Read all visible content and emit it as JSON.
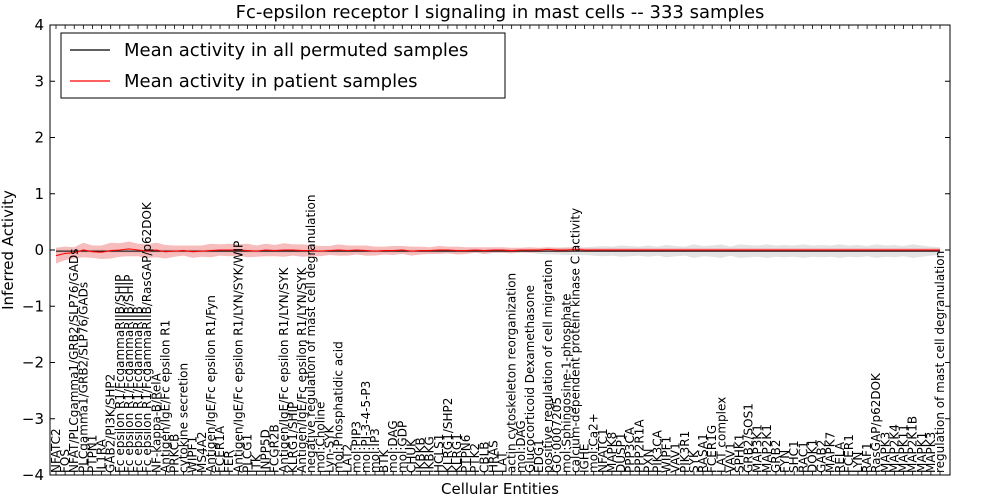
{
  "chart_data": {
    "type": "line",
    "title": "Fc-epsilon receptor I signaling in mast cells -- 333 samples",
    "xlabel": "Cellular Entities",
    "ylabel": "Inferred Activity",
    "ylim": [
      -4,
      4
    ],
    "yticks": [
      -4,
      -3,
      -2,
      -1,
      0,
      1,
      2,
      3,
      4
    ],
    "ytick_labels": [
      "−4",
      "−3",
      "−2",
      "−1",
      "0",
      "1",
      "2",
      "3",
      "4"
    ],
    "legend": {
      "placement": "top-left",
      "entries": [
        {
          "label": "Mean activity in all permuted samples",
          "color": "#000000"
        },
        {
          "label": "Mean activity in patient samples",
          "color": "#ff0000"
        }
      ]
    },
    "colors": {
      "permuted_line": "#000000",
      "patient_line": "#ff0000",
      "permuted_band": "#d9d9d9",
      "patient_band": "#f4a0a0"
    },
    "categories": [
      "NFATC2",
      "FOS",
      "NFAT/PLCgamma1/GRB2/SLP76/GADs",
      "PLCgamma1/GRB2/SLP76/GADs",
      "PTPN1",
      "IL1RA",
      "GAB2/PI3K/SHP2",
      "Fc epsilon R1/FcgammaRIIB/SHIP",
      "Fc epsilon R1/FcgammaRIIB/SHIP",
      "Fc epsilon R1/FcgammaRIIB",
      "Fc epsilon R1/FcgammaRIIB/RasGAP/p62DOK",
      "NF-kappa-B/RelA",
      "Antigen/IgE/Fc epsilon R1",
      "PRKCB",
      "cytokine secretion",
      "WIPF1",
      "MS4A2",
      "Antigen/IgE/Fc epsilon R1/Fyn",
      "FCER1A",
      "FER",
      "Antigen/IgE/Fc epsilon R1/LYN/SYK/WIP",
      "PLCG1",
      "ITK",
      "INPP5D",
      "FCGR2B",
      "Antigen/IgE/Fc epsilon R1/LYN/SYK",
      "KLRG1/SHIP",
      "Antigen/IgE/Fc epsilon R1/LYN/SYK",
      "negative regulation of mast cell degranulation",
      "mol:Choline",
      "Lyn-SYK",
      "mol:Phosphatidic acid",
      "LAT2",
      "mol:PIP3",
      "mol:PI-3-4-5-P3",
      "mol:IP3",
      "BTK",
      "mol:DAG",
      "mol:GDP",
      "CHUK",
      "IKBKB",
      "IKBKG",
      "HCLS1",
      "KLRG1/SHP2",
      "KLRG1",
      "PTPN6",
      "PTK2",
      "CBLB",
      "HRAS",
      "LAT",
      "actin cytoskeleton reorganization",
      "mol:DAG",
      "Glucocorticoid Dexamethasone",
      "EDG1",
      "positive regulation of cell migration",
      "GO:0007205",
      "mol:Sphingosine-1-phosphate",
      "calcium-dependent protein kinase C activity",
      "IGHE",
      "mol:Ca2+",
      "NFATC1",
      "MAPK8",
      "DUSP1",
      "PPP3CA",
      "PPP2R1A",
      "PXN",
      "PIK3CA",
      "WIPF1",
      "VAV1",
      "PIK3R1",
      "SYK",
      "RASA1",
      "FCER1G",
      "LAT complex",
      "VAV1",
      "SPHK1",
      "GRB2/SOS1",
      "MAP3K1",
      "MAP2K1",
      "GRB2",
      "FYN",
      "SHC1",
      "RAC1",
      "DOK1",
      "GAB2",
      "MAPK7",
      "RELA",
      "FCER1",
      "LYN",
      "RAF1",
      "RasGAP/p62DOK",
      "MAPK3",
      "MAP2K4",
      "MAPK11",
      "MAP2K1B",
      "MAPK1",
      "MAPK3",
      "regulation of mast cell degranulation"
    ],
    "series": [
      {
        "name": "Mean activity in all permuted samples",
        "values": [
          -0.02,
          -0.02,
          -0.02,
          -0.02,
          -0.02,
          -0.02,
          -0.02,
          -0.02,
          -0.02,
          -0.02,
          -0.02,
          -0.02,
          -0.02,
          -0.02,
          -0.02,
          -0.02,
          -0.02,
          -0.02,
          -0.02,
          -0.02,
          -0.02,
          -0.02,
          -0.02,
          -0.02,
          -0.02,
          -0.02,
          -0.02,
          -0.02,
          -0.02,
          -0.02,
          -0.02,
          -0.02,
          -0.02,
          -0.02,
          -0.02,
          -0.02,
          -0.02,
          -0.02,
          -0.02,
          -0.02,
          -0.02,
          -0.02,
          -0.02,
          -0.02,
          -0.02,
          -0.02,
          -0.02,
          -0.02,
          -0.02,
          -0.02,
          -0.02,
          -0.02,
          -0.02,
          -0.02,
          -0.02,
          -0.02,
          -0.02,
          -0.02,
          -0.02,
          -0.02,
          -0.02,
          -0.02,
          -0.02,
          -0.02,
          -0.02,
          -0.02,
          -0.02,
          -0.02,
          -0.02,
          -0.02,
          -0.02,
          -0.02,
          -0.02,
          -0.02,
          -0.02,
          -0.02,
          -0.02,
          -0.02,
          -0.02,
          -0.02,
          -0.02,
          -0.02,
          -0.02,
          -0.02,
          -0.02,
          -0.02,
          -0.02,
          -0.02,
          -0.02,
          -0.02,
          -0.02,
          -0.02,
          -0.02,
          -0.02,
          -0.02,
          -0.02,
          -0.02,
          -0.02
        ],
        "band": [
          0.03,
          0.03,
          0.03,
          0.03,
          0.03,
          0.03,
          0.03,
          0.03,
          0.03,
          0.03,
          0.03,
          0.03,
          0.03,
          0.03,
          0.03,
          0.03,
          0.03,
          0.03,
          0.03,
          0.03,
          0.03,
          0.03,
          0.03,
          0.03,
          0.03,
          0.03,
          0.03,
          0.03,
          0.03,
          0.03,
          0.03,
          0.03,
          0.03,
          0.03,
          0.03,
          0.03,
          0.03,
          0.03,
          0.03,
          0.03,
          0.03,
          0.03,
          0.03,
          0.03,
          0.03,
          0.03,
          0.03,
          0.03,
          0.03,
          0.03,
          0.03,
          0.03,
          0.03,
          0.05,
          0.06,
          0.06,
          0.07,
          0.07,
          0.07,
          0.08,
          0.09,
          0.08,
          0.1,
          0.09,
          0.08,
          0.1,
          0.08,
          0.11,
          0.09,
          0.08,
          0.12,
          0.09,
          0.1,
          0.12,
          0.08,
          0.12,
          0.11,
          0.1,
          0.12,
          0.1,
          0.11,
          0.1,
          0.12,
          0.1,
          0.11,
          0.1,
          0.12,
          0.1,
          0.11,
          0.09,
          0.12,
          0.1,
          0.11,
          0.09,
          0.12,
          0.1,
          0.08,
          0.07
        ]
      },
      {
        "name": "Mean activity in patient samples",
        "values": [
          -0.1,
          -0.06,
          -0.05,
          0.0,
          -0.03,
          -0.04,
          -0.01,
          0.0,
          0.02,
          0.0,
          -0.02,
          0.0,
          -0.03,
          -0.02,
          -0.01,
          -0.03,
          -0.02,
          -0.01,
          0.0,
          0.0,
          0.0,
          -0.01,
          -0.02,
          0.0,
          -0.01,
          0.0,
          0.0,
          -0.01,
          -0.01,
          -0.02,
          -0.01,
          0.0,
          -0.01,
          0.0,
          -0.01,
          -0.02,
          -0.01,
          -0.01,
          0.0,
          -0.02,
          -0.01,
          -0.01,
          0.0,
          0.0,
          -0.01,
          -0.01,
          0.0,
          -0.01,
          0.0,
          0.0,
          -0.01,
          0.0,
          0.0,
          0.0,
          0.01,
          0.0,
          0.0,
          0.01,
          0.0,
          0.0,
          0.0,
          0.0,
          0.0,
          0.0,
          0.0,
          0.0,
          0.0,
          0.0,
          0.0,
          0.0,
          0.0,
          0.0,
          0.0,
          0.0,
          0.0,
          0.0,
          0.0,
          0.0,
          0.0,
          0.0,
          0.0,
          0.0,
          0.0,
          0.0,
          0.0,
          0.0,
          0.0,
          0.0,
          0.0,
          0.0,
          0.0,
          0.0,
          0.0,
          0.0,
          0.0,
          0.0,
          0.0,
          0.0
        ],
        "band": [
          0.14,
          0.12,
          0.1,
          0.13,
          0.11,
          0.12,
          0.14,
          0.12,
          0.13,
          0.11,
          0.12,
          0.13,
          0.12,
          0.1,
          0.09,
          0.11,
          0.1,
          0.12,
          0.1,
          0.11,
          0.1,
          0.12,
          0.1,
          0.11,
          0.1,
          0.12,
          0.1,
          0.11,
          0.1,
          0.09,
          0.08,
          0.1,
          0.09,
          0.08,
          0.09,
          0.08,
          0.07,
          0.08,
          0.07,
          0.08,
          0.07,
          0.06,
          0.07,
          0.06,
          0.07,
          0.06,
          0.05,
          0.06,
          0.05,
          0.05,
          0.05,
          0.04,
          0.05,
          0.04,
          0.04,
          0.04,
          0.04,
          0.04,
          0.03,
          0.03,
          0.03,
          0.03,
          0.03,
          0.03,
          0.03,
          0.03,
          0.03,
          0.03,
          0.03,
          0.03,
          0.03,
          0.03,
          0.03,
          0.03,
          0.03,
          0.03,
          0.03,
          0.03,
          0.03,
          0.03,
          0.03,
          0.03,
          0.03,
          0.03,
          0.03,
          0.03,
          0.03,
          0.03,
          0.03,
          0.03,
          0.03,
          0.03,
          0.03,
          0.03,
          0.03,
          0.03,
          0.03,
          0.03
        ]
      }
    ]
  }
}
